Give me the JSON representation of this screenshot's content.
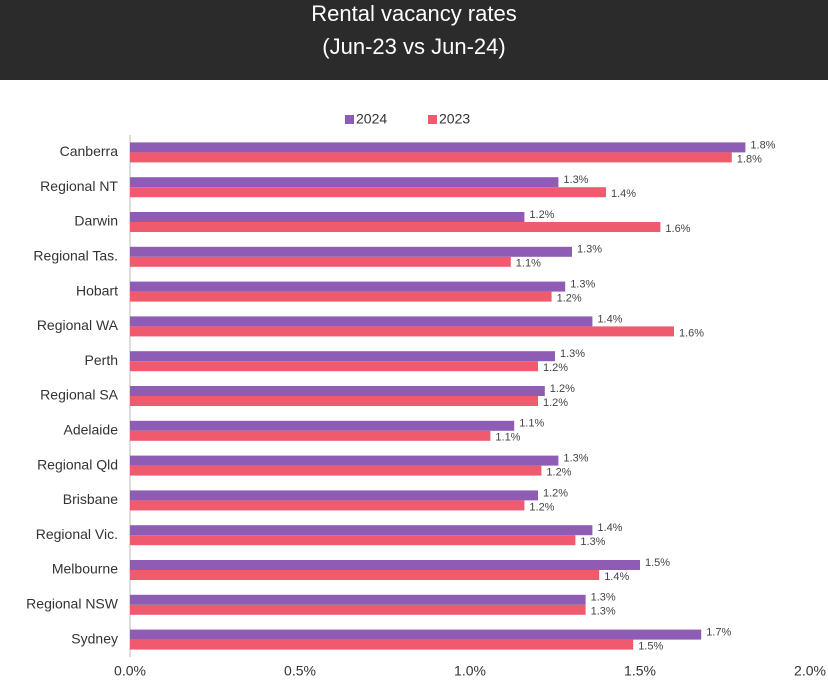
{
  "chart_data": {
    "type": "bar",
    "orientation": "horizontal",
    "title": "Rental vacancy rates",
    "subtitle": "(Jun-23 vs Jun-24)",
    "categories": [
      "Canberra",
      "Regional NT",
      "Darwin",
      "Regional Tas.",
      "Hobart",
      "Regional WA",
      "Perth",
      "Regional SA",
      "Adelaide",
      "Regional Qld",
      "Brisbane",
      "Regional Vic.",
      "Melbourne",
      "Regional NSW",
      "Sydney"
    ],
    "series": [
      {
        "name": "2024",
        "color": "#8e5bb5",
        "values": [
          1.81,
          1.26,
          1.16,
          1.3,
          1.28,
          1.36,
          1.25,
          1.22,
          1.13,
          1.26,
          1.2,
          1.36,
          1.5,
          1.34,
          1.68
        ],
        "value_labels": [
          "1.8%",
          "1.3%",
          "1.2%",
          "1.3%",
          "1.3%",
          "1.4%",
          "1.3%",
          "1.2%",
          "1.1%",
          "1.3%",
          "1.2%",
          "1.4%",
          "1.5%",
          "1.3%",
          "1.7%"
        ]
      },
      {
        "name": "2023",
        "color": "#ef5a6e",
        "values": [
          1.77,
          1.4,
          1.56,
          1.12,
          1.24,
          1.6,
          1.2,
          1.2,
          1.06,
          1.21,
          1.16,
          1.31,
          1.38,
          1.34,
          1.48
        ],
        "value_labels": [
          "1.8%",
          "1.4%",
          "1.6%",
          "1.1%",
          "1.2%",
          "1.6%",
          "1.2%",
          "1.2%",
          "1.1%",
          "1.2%",
          "1.2%",
          "1.3%",
          "1.4%",
          "1.3%",
          "1.5%"
        ]
      }
    ],
    "xlim": [
      0,
      2.0
    ],
    "xticks": [
      {
        "value": 0,
        "label": "0.0%"
      },
      {
        "value": 0.5,
        "label": "0.5%"
      },
      {
        "value": 1.0,
        "label": "1.0%"
      },
      {
        "value": 1.5,
        "label": "1.5%"
      },
      {
        "value": 2.0,
        "label": "2.0%"
      }
    ],
    "grid": false,
    "legend": "top"
  }
}
